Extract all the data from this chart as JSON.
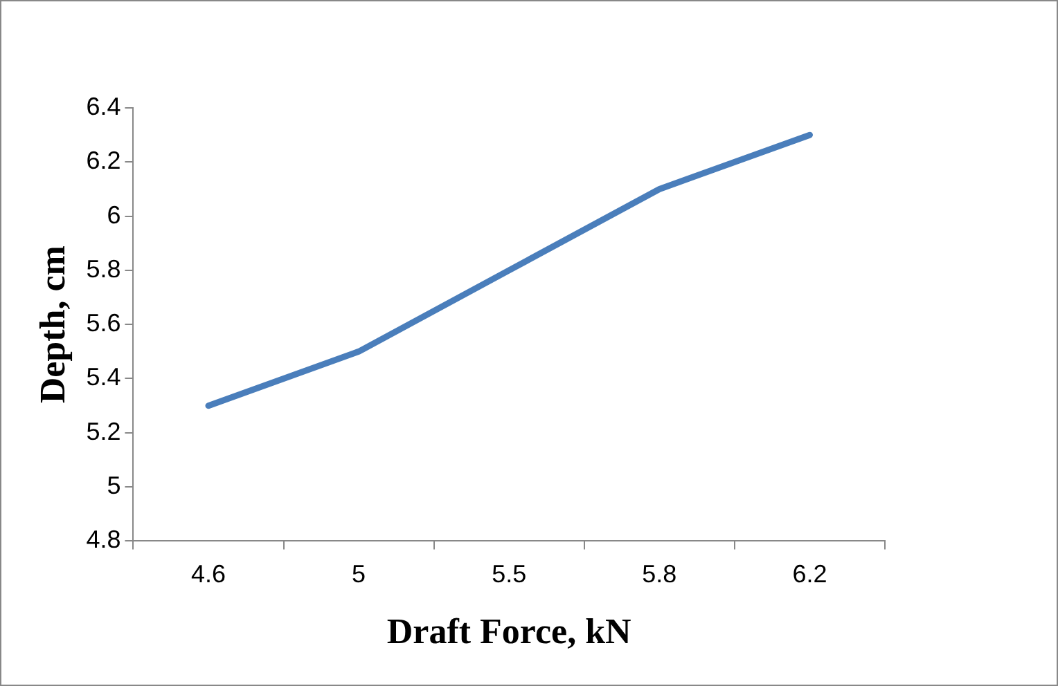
{
  "chart_data": {
    "type": "line",
    "xlabel": "Draft Force, kN",
    "ylabel": "Depth, cm",
    "categories": [
      "4.6",
      "5",
      "5.5",
      "5.8",
      "6.2"
    ],
    "series": [
      {
        "color": "#4a7ebb",
        "values": [
          5.3,
          5.5,
          5.8,
          6.1,
          6.3
        ]
      }
    ],
    "ylim": [
      4.8,
      6.4
    ],
    "yticks": [
      4.8,
      5,
      5.2,
      5.4,
      5.6,
      5.8,
      6,
      6.2,
      6.4
    ],
    "grid": false,
    "legend": false,
    "marker": "none",
    "line_style": "solid"
  }
}
